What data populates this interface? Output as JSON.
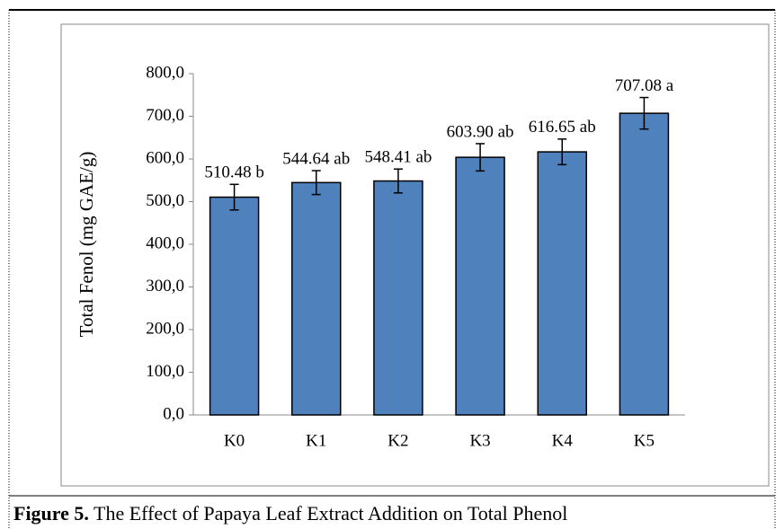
{
  "chart_data": {
    "type": "bar",
    "y_label": "Total Fenol (mg GAE/g)",
    "categories": [
      "K0",
      "K1",
      "K2",
      "K3",
      "K4",
      "K5"
    ],
    "values": [
      510.48,
      544.64,
      548.41,
      603.9,
      616.65,
      707.08
    ],
    "value_labels": [
      "510.48 b",
      "544.64 ab",
      "548.41 ab",
      "603.90 ab",
      "616.65 ab",
      "707.08 a"
    ],
    "errors": [
      30,
      28,
      28,
      32,
      30,
      37
    ],
    "color": "#4f81bd",
    "ylim": [
      0,
      800
    ],
    "yticks": [
      {
        "value": 0,
        "label": "0,0"
      },
      {
        "value": 100,
        "label": "100,0"
      },
      {
        "value": 200,
        "label": "200,0"
      },
      {
        "value": 300,
        "label": "300,0"
      },
      {
        "value": 400,
        "label": "400,0"
      },
      {
        "value": 500,
        "label": "500,0"
      },
      {
        "value": 600,
        "label": "600,0"
      },
      {
        "value": 700,
        "label": "700,0"
      },
      {
        "value": 800,
        "label": "800,0"
      }
    ],
    "grid": false
  },
  "caption": {
    "label": "Figure 5.",
    "text": "The Effect of Papaya Leaf Extract Addition on Total Phenol"
  }
}
